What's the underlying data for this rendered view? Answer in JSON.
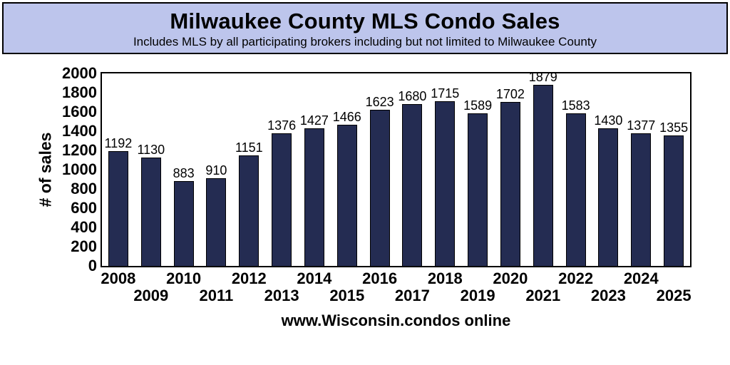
{
  "header": {
    "title": "Milwaukee County MLS Condo Sales",
    "subtitle": "Includes MLS by all participating brokers including but not limited to Milwaukee County",
    "background_color": "#BDC5EC",
    "border_color": "#000000"
  },
  "footer": {
    "caption": "www.Wisconsin.condos online"
  },
  "colors": {
    "bar_fill": "#242C52",
    "bar_outline": "#000000",
    "plot_border": "#000000",
    "text": "#000000",
    "plot_background": "#FFFFFF"
  },
  "chart_data": {
    "type": "bar",
    "title": "Milwaukee County MLS Condo Sales",
    "subtitle": "Includes MLS by all participating brokers including but not limited to Milwaukee County",
    "categories": [
      "2008",
      "2009",
      "2010",
      "2011",
      "2012",
      "2013",
      "2014",
      "2015",
      "2016",
      "2017",
      "2018",
      "2019",
      "2020",
      "2021",
      "2022",
      "2023",
      "2024",
      "2025"
    ],
    "values": [
      1192,
      1130,
      883,
      910,
      1151,
      1376,
      1427,
      1466,
      1623,
      1680,
      1715,
      1589,
      1702,
      1879,
      1583,
      1430,
      1377,
      1355
    ],
    "xlabel": "www.Wisconsin.condos online",
    "ylabel": "# of sales",
    "ylim": [
      0,
      2000
    ],
    "ytick_step": 200,
    "grid": false,
    "legend_position": "none",
    "bar_value_labels_visible": true,
    "x_tick_style": "staggered-two-rows"
  }
}
